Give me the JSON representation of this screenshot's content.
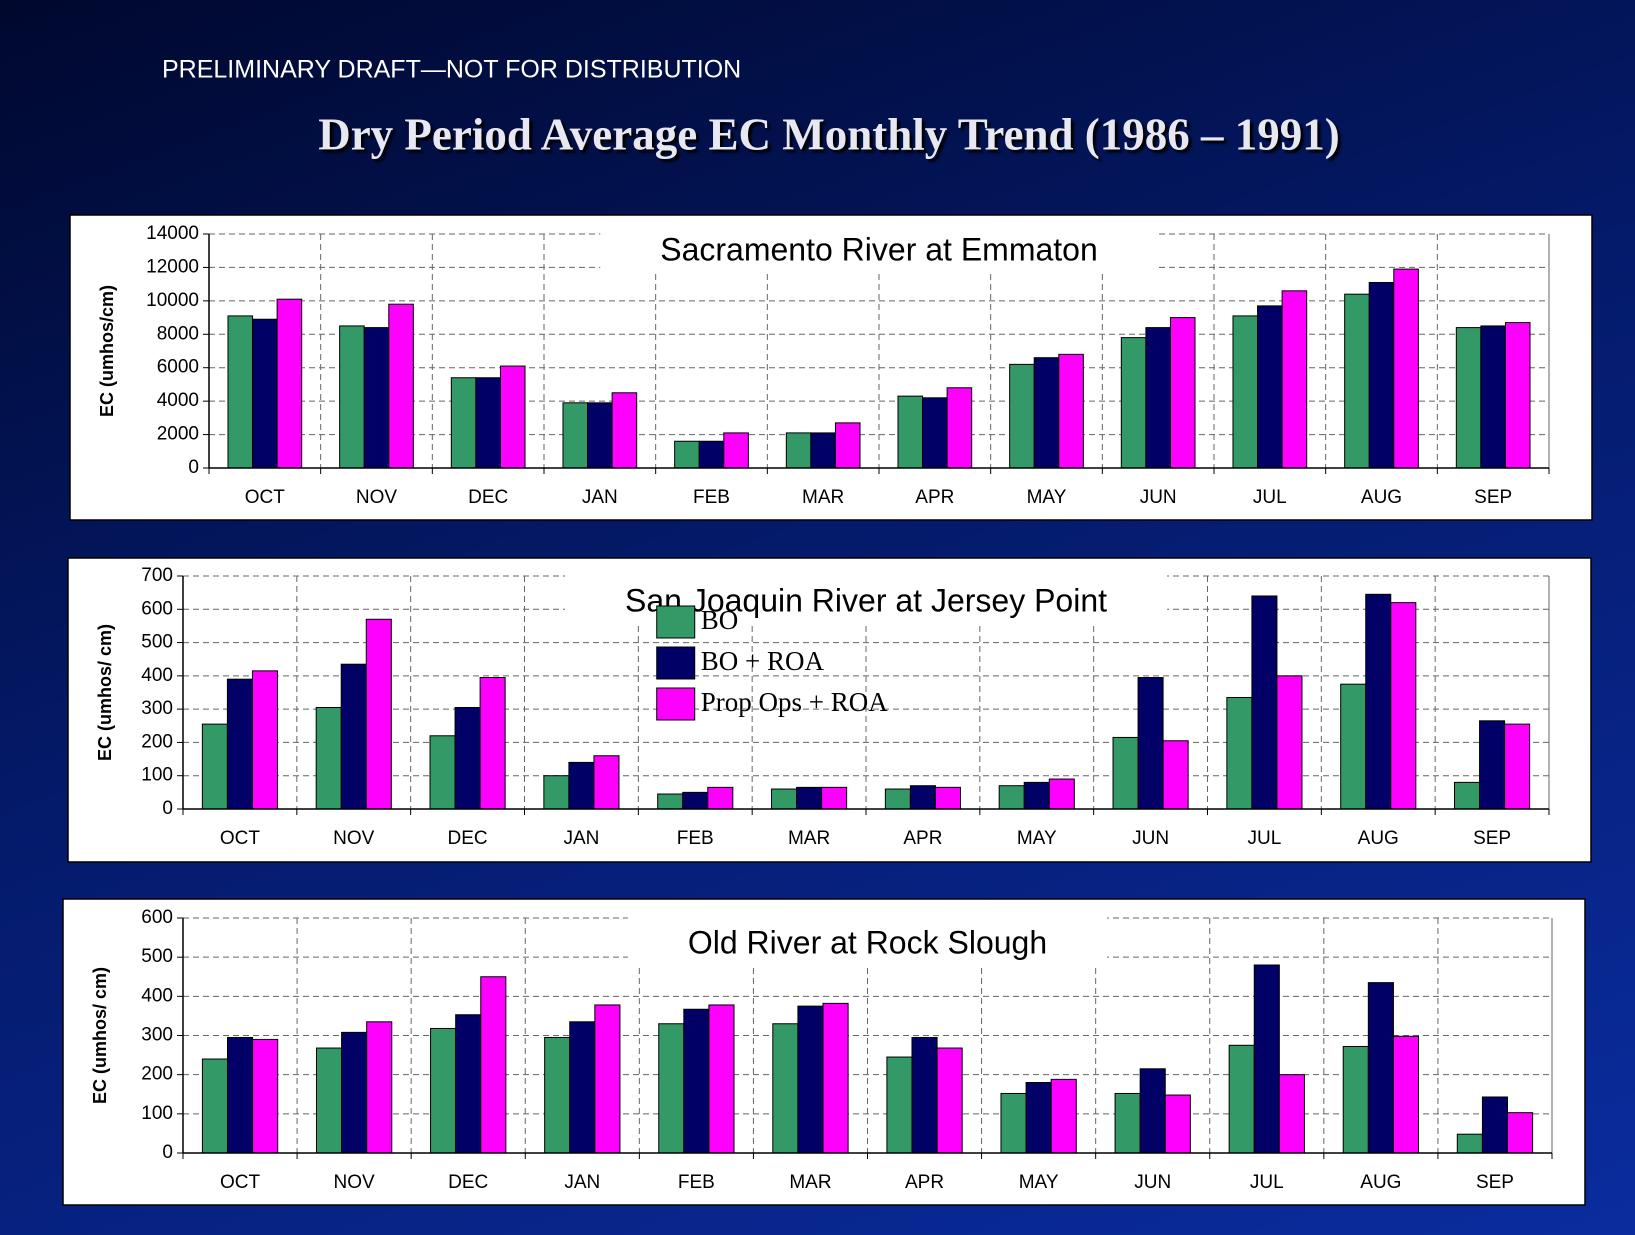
{
  "header": {
    "note": "PRELIMINARY DRAFT—NOT FOR DISTRIBUTION",
    "title": "Dry Period Average EC Monthly Trend (1986 – 1991)"
  },
  "chart_data": [
    {
      "type": "bar",
      "title": "Sacramento River at Emmaton",
      "y_label": "EC (umhos/cm)",
      "categories": [
        "OCT",
        "NOV",
        "DEC",
        "JAN",
        "FEB",
        "MAR",
        "APR",
        "MAY",
        "JUN",
        "JUL",
        "AUG",
        "SEP"
      ],
      "series": [
        {
          "color": "#339966",
          "values": [
            9100,
            8500,
            5400,
            3900,
            1600,
            2100,
            4300,
            6200,
            7800,
            9100,
            10400,
            8400
          ]
        },
        {
          "color": "#000066",
          "values": [
            8900,
            8400,
            5400,
            3900,
            1600,
            2100,
            4200,
            6600,
            8400,
            9700,
            11100,
            8500
          ]
        },
        {
          "color": "#ff00ff",
          "values": [
            10100,
            9800,
            6100,
            4500,
            2100,
            2700,
            4800,
            6800,
            9000,
            10600,
            11900,
            8700
          ]
        }
      ],
      "ylim": [
        0,
        14000
      ],
      "yticks": [
        0,
        2000,
        4000,
        6000,
        8000,
        10000,
        12000,
        14000
      ],
      "grid": true
    },
    {
      "type": "bar",
      "title": "San Joaquin River at Jersey Point",
      "y_label": "EC (umhos/ cm)",
      "categories": [
        "OCT",
        "NOV",
        "DEC",
        "JAN",
        "FEB",
        "MAR",
        "APR",
        "MAY",
        "JUN",
        "JUL",
        "AUG",
        "SEP"
      ],
      "series": [
        {
          "name": "BO",
          "color": "#339966",
          "values": [
            255,
            305,
            220,
            100,
            45,
            60,
            60,
            70,
            215,
            335,
            375,
            80
          ]
        },
        {
          "name": "BO + ROA",
          "color": "#000066",
          "values": [
            390,
            435,
            305,
            140,
            50,
            65,
            70,
            80,
            395,
            640,
            645,
            265
          ]
        },
        {
          "name": "Prop Ops + ROA",
          "color": "#ff00ff",
          "values": [
            415,
            570,
            395,
            160,
            65,
            65,
            65,
            90,
            205,
            400,
            620,
            255
          ]
        }
      ],
      "ylim": [
        0,
        700
      ],
      "yticks": [
        0,
        100,
        200,
        300,
        400,
        500,
        600,
        700
      ],
      "grid": true,
      "legend": "top"
    },
    {
      "type": "bar",
      "title": "Old River at Rock Slough",
      "y_label": "EC (umhos/ cm)",
      "categories": [
        "OCT",
        "NOV",
        "DEC",
        "JAN",
        "FEB",
        "MAR",
        "APR",
        "MAY",
        "JUN",
        "JUL",
        "AUG",
        "SEP"
      ],
      "series": [
        {
          "color": "#339966",
          "values": [
            240,
            268,
            318,
            295,
            330,
            330,
            245,
            152,
            152,
            275,
            272,
            48
          ]
        },
        {
          "color": "#000066",
          "values": [
            295,
            308,
            353,
            335,
            367,
            375,
            295,
            180,
            215,
            480,
            435,
            143
          ]
        },
        {
          "color": "#ff00ff",
          "values": [
            290,
            335,
            450,
            378,
            378,
            382,
            268,
            188,
            148,
            200,
            298,
            103
          ]
        }
      ],
      "ylim": [
        0,
        600
      ],
      "yticks": [
        0,
        100,
        200,
        300,
        400,
        500,
        600
      ],
      "grid": true
    }
  ]
}
